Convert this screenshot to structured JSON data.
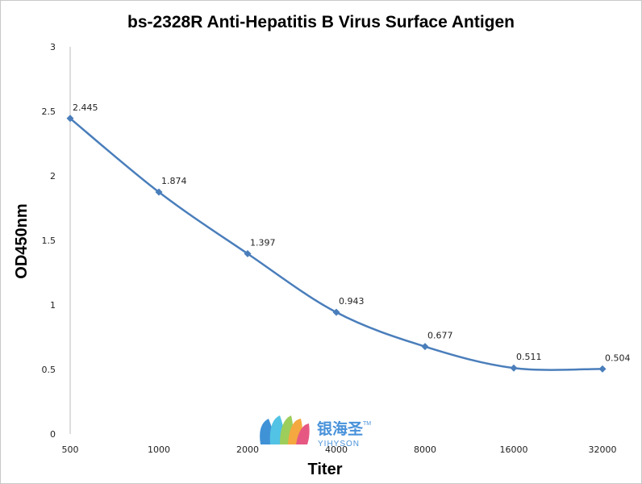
{
  "chart_data": {
    "type": "line",
    "title": "bs-2328R Anti-Hepatitis B Virus Surface Antigen",
    "xlabel": "Titer",
    "ylabel": "OD450nm",
    "categories": [
      "500",
      "1000",
      "2000",
      "4000",
      "8000",
      "16000",
      "32000"
    ],
    "series": [
      {
        "values": [
          2.445,
          1.874,
          1.397,
          0.943,
          0.677,
          0.511,
          0.504
        ],
        "data_labels": [
          "2.445",
          "1.874",
          "1.397",
          "0.943",
          "0.677",
          "0.511",
          "0.504"
        ],
        "color": "#4a7ebb",
        "marker": "diamond",
        "smooth": true
      }
    ],
    "yticks": [
      "0",
      "0.5",
      "1",
      "1.5",
      "2",
      "2.5",
      "3"
    ],
    "ylim": [
      0,
      3
    ],
    "grid": false,
    "legend": "none"
  },
  "watermark": {
    "name_cn": "银海圣",
    "tm": "TM",
    "name_en": "YIHYSON",
    "colors": [
      "#1f7fd0",
      "#35b9e0",
      "#8cc63f",
      "#f39a1e",
      "#e23b6d"
    ]
  }
}
